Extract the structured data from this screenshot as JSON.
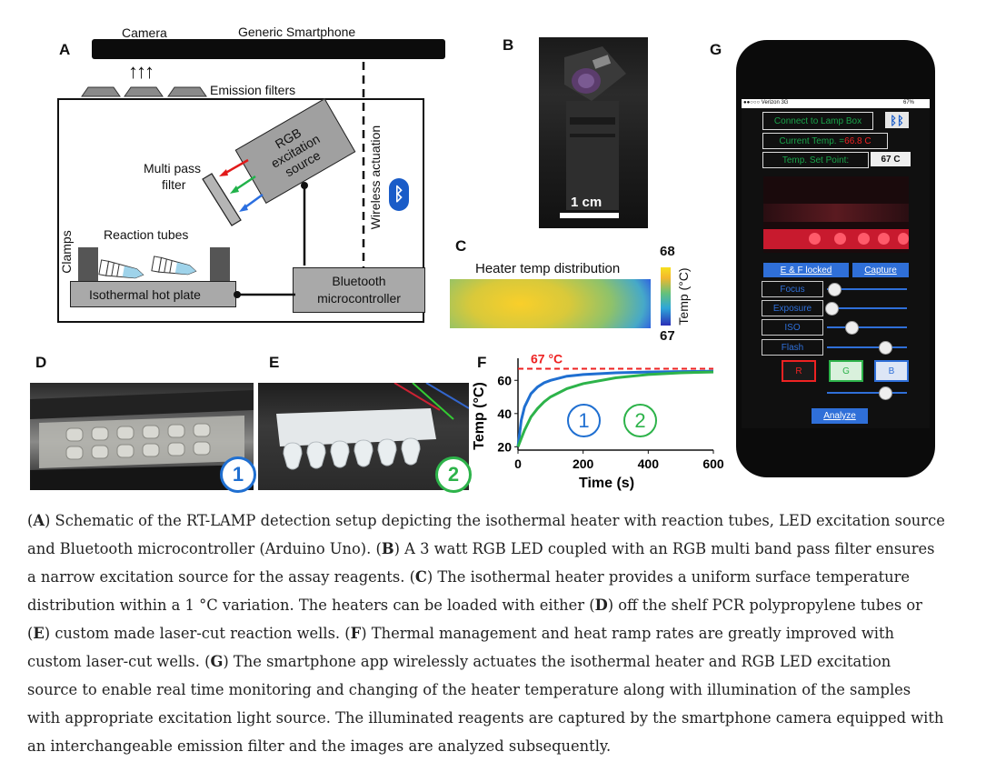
{
  "panels": {
    "a": {
      "letter": "A",
      "camera": "Camera",
      "smartphone": "Generic Smartphone",
      "emission_filters": "Emission filters",
      "rgb_source": [
        "RGB",
        "excitation",
        "source"
      ],
      "multi_pass": "Multi pass",
      "filter": "filter",
      "wireless": "Wireless actuation",
      "reaction_tubes": "Reaction tubes",
      "clamps": "Clamps",
      "hot_plate": "Isothermal hot plate",
      "bluetooth": "Bluetooth",
      "microcontroller": "microcontroller",
      "arrows": "↑↑↑"
    },
    "b": {
      "letter": "B",
      "scale": "1 cm"
    },
    "c": {
      "letter": "C",
      "title": "Heater temp distribution",
      "colorbar_max": "68",
      "colorbar_min": "67",
      "colorbar_label": "Temp (°C)"
    },
    "d": {
      "letter": "D",
      "badge": "1"
    },
    "e": {
      "letter": "E",
      "badge": "2"
    },
    "f": {
      "letter": "F",
      "legend_1": "1",
      "legend_2": "2"
    },
    "g": {
      "letter": "G",
      "carrier": "●●○○○ Verizon  3G",
      "battery": "67%",
      "connect": "Connect to Lamp Box",
      "current_temp_label": "Current Temp. = ",
      "current_temp_value": "66.8 C",
      "set_point_label": "Temp. Set Point:",
      "set_point_value": "67 C",
      "ef_locked": "E & F locked",
      "capture": "Capture",
      "focus": "Focus",
      "exposure": "Exposure",
      "iso": "ISO",
      "flash": "Flash",
      "r": "R",
      "g": "G",
      "b": "B",
      "analyze": "Analyze",
      "slider_levels": [
        0.08,
        0.05,
        0.3,
        0.72,
        0.72
      ]
    }
  },
  "chart_data": {
    "type": "line",
    "xlabel": "Time (s)",
    "ylabel": "Temp (°C)",
    "x_ticks": [
      0,
      200,
      400,
      600
    ],
    "y_ticks": [
      20,
      40,
      60
    ],
    "xlim": [
      0,
      600
    ],
    "ylim": [
      18,
      70
    ],
    "annotation": "67 °C",
    "reference_y": 67,
    "series": [
      {
        "color": "#1f6fd1",
        "x": [
          0,
          10,
          20,
          40,
          60,
          80,
          100,
          150,
          200,
          300,
          400,
          500,
          600
        ],
        "y": [
          20,
          36,
          44,
          52,
          56,
          58.5,
          60,
          62.5,
          63.5,
          64.5,
          65,
          65.3,
          65.5
        ]
      },
      {
        "color": "#2db34a",
        "x": [
          0,
          20,
          40,
          60,
          80,
          100,
          150,
          200,
          300,
          400,
          500,
          600
        ],
        "y": [
          20,
          30,
          38,
          43,
          47,
          50,
          55,
          58,
          61.5,
          63.5,
          64.5,
          65
        ]
      }
    ]
  },
  "caption": [
    {
      "b": "A",
      "t": " Schematic of the RT-LAMP detection setup depicting the isothermal heater with reaction tubes, LED excitation source and Bluetooth microcontroller (Arduino Uno). "
    },
    {
      "b": "B",
      "t": " A 3 watt RGB LED coupled with an RGB multi band pass filter ensures a narrow excitation source for the assay reagents. "
    },
    {
      "b": "C",
      "t": " The isothermal heater provides a uniform surface temperature distribution within a 1 °C variation. The heaters can be loaded with either "
    },
    {
      "b": "D",
      "t": " off the shelf PCR polypropylene tubes or "
    },
    {
      "b": "E",
      "t": " custom made laser-cut reaction wells. "
    },
    {
      "b": "F",
      "t": " Thermal management and heat ramp rates are greatly improved with custom laser-cut wells. "
    },
    {
      "b": "G",
      "t": " The smartphone app wirelessly actuates the isothermal heater and RGB LED excitation source to enable real time monitoring and changing of the heater temperature along with illumination of the samples with appropriate excitation light source. The illuminated reagents are captured by the smartphone camera equipped with an interchangeable emission filter and the images are analyzed subsequently."
    }
  ]
}
